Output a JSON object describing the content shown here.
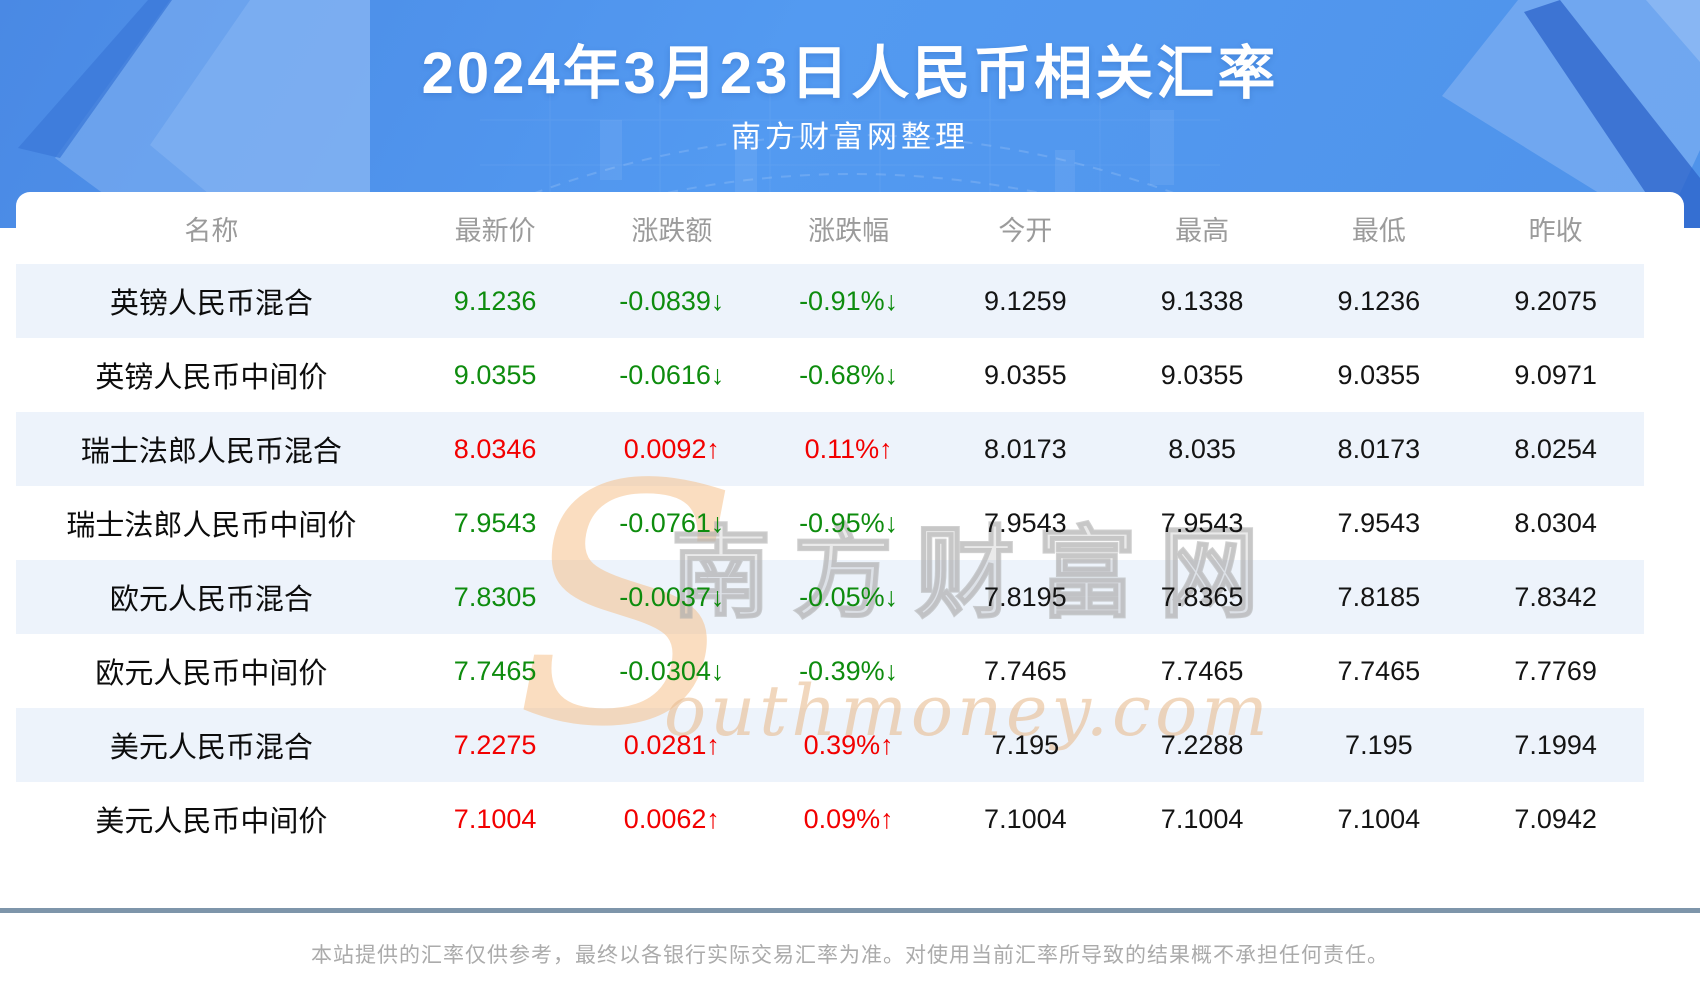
{
  "header": {
    "title": "2024年3月23日人民币相关汇率",
    "subtitle": "南方财富网整理"
  },
  "chart_data": {
    "type": "table",
    "title": "2024年3月23日人民币相关汇率",
    "columns": [
      "名称",
      "最新价",
      "涨跌额",
      "涨跌幅",
      "今开",
      "最高",
      "最低",
      "昨收"
    ],
    "rows": [
      {
        "name": "英镑人民币混合",
        "latest": "9.1236",
        "change": "-0.0839",
        "change_pct": "-0.91%",
        "direction": "down",
        "open": "9.1259",
        "high": "9.1338",
        "low": "9.1236",
        "prev_close": "9.2075"
      },
      {
        "name": "英镑人民币中间价",
        "latest": "9.0355",
        "change": "-0.0616",
        "change_pct": "-0.68%",
        "direction": "down",
        "open": "9.0355",
        "high": "9.0355",
        "low": "9.0355",
        "prev_close": "9.0971"
      },
      {
        "name": "瑞士法郎人民币混合",
        "latest": "8.0346",
        "change": "0.0092",
        "change_pct": "0.11%",
        "direction": "up",
        "open": "8.0173",
        "high": "8.035",
        "low": "8.0173",
        "prev_close": "8.0254"
      },
      {
        "name": "瑞士法郎人民币中间价",
        "latest": "7.9543",
        "change": "-0.0761",
        "change_pct": "-0.95%",
        "direction": "down",
        "open": "7.9543",
        "high": "7.9543",
        "low": "7.9543",
        "prev_close": "8.0304"
      },
      {
        "name": "欧元人民币混合",
        "latest": "7.8305",
        "change": "-0.0037",
        "change_pct": "-0.05%",
        "direction": "down",
        "open": "7.8195",
        "high": "7.8365",
        "low": "7.8185",
        "prev_close": "7.8342"
      },
      {
        "name": "欧元人民币中间价",
        "latest": "7.7465",
        "change": "-0.0304",
        "change_pct": "-0.39%",
        "direction": "down",
        "open": "7.7465",
        "high": "7.7465",
        "low": "7.7465",
        "prev_close": "7.7769"
      },
      {
        "name": "美元人民币混合",
        "latest": "7.2275",
        "change": "0.0281",
        "change_pct": "0.39%",
        "direction": "up",
        "open": "7.195",
        "high": "7.2288",
        "low": "7.195",
        "prev_close": "7.1994"
      },
      {
        "name": "美元人民币中间价",
        "latest": "7.1004",
        "change": "0.0062",
        "change_pct": "0.09%",
        "direction": "up",
        "open": "7.1004",
        "high": "7.1004",
        "low": "7.1004",
        "prev_close": "7.0942"
      }
    ]
  },
  "icons": {
    "up_arrow": "↑",
    "down_arrow": "↓"
  },
  "colors": {
    "up": "#f20000",
    "down": "#0e8c0e",
    "row_alt": "#edf3fb",
    "banner_blue": "#4f93ea",
    "divider": "#7e95aa"
  },
  "watermark": {
    "logo_s": "S",
    "cn_text": "南方财富网",
    "en_text": "outhmoney.com"
  },
  "footer": {
    "disclaimer": "本站提供的汇率仅供参考，最终以各银行实际交易汇率为准。对使用当前汇率所导致的结果概不承担任何责任。"
  }
}
